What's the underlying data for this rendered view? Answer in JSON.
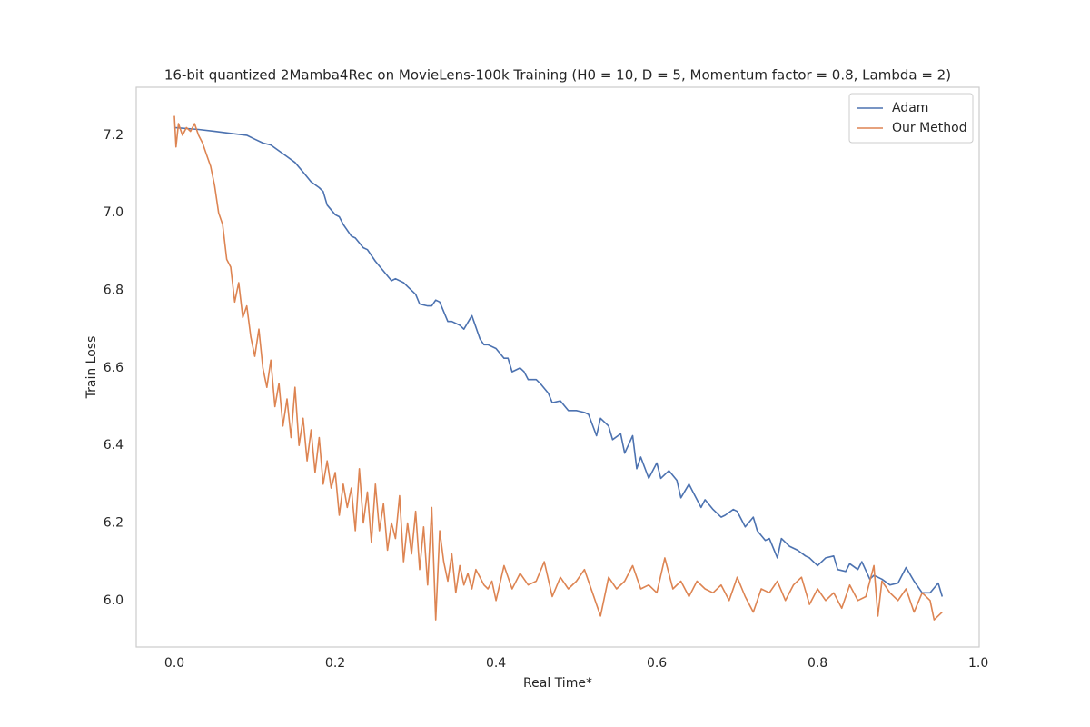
{
  "chart_data": {
    "type": "line",
    "title": "16-bit quantized 2Mamba4Rec on MovieLens-100k Training (H0 = 10, D = 5, Momentum factor = 0.8, Lambda = 2)",
    "xlabel": "Real Time*",
    "ylabel": "Train Loss",
    "xlim": [
      -0.0475,
      1.001
    ],
    "ylim": [
      5.88,
      7.324
    ],
    "xticks": [
      {
        "value": 0,
        "label": "0.0"
      },
      0.2,
      0.4,
      0.6,
      0.8,
      {
        "value": 1,
        "label": "1.0"
      }
    ],
    "yticks": [
      {
        "value": 6,
        "label": "6.0"
      },
      6.2,
      6.4,
      6.6,
      6.8,
      {
        "value": 7,
        "label": "7.0"
      },
      7.2
    ],
    "grid": true,
    "legend": "upper right",
    "series": [
      {
        "name": "Adam",
        "color": "#4c72b0",
        "x": [
          0,
          0.03,
          0.05,
          0.07,
          0.09,
          0.1,
          0.11,
          0.12,
          0.13,
          0.14,
          0.15,
          0.16,
          0.17,
          0.18,
          0.185,
          0.19,
          0.2,
          0.205,
          0.21,
          0.22,
          0.225,
          0.235,
          0.24,
          0.25,
          0.26,
          0.27,
          0.275,
          0.285,
          0.29,
          0.3,
          0.305,
          0.315,
          0.32,
          0.325,
          0.33,
          0.34,
          0.345,
          0.355,
          0.36,
          0.37,
          0.38,
          0.385,
          0.39,
          0.4,
          0.41,
          0.415,
          0.42,
          0.43,
          0.435,
          0.44,
          0.45,
          0.455,
          0.465,
          0.47,
          0.48,
          0.49,
          0.5,
          0.51,
          0.515,
          0.525,
          0.53,
          0.54,
          0.545,
          0.555,
          0.56,
          0.57,
          0.575,
          0.58,
          0.59,
          0.6,
          0.605,
          0.615,
          0.625,
          0.63,
          0.64,
          0.645,
          0.655,
          0.66,
          0.67,
          0.68,
          0.685,
          0.695,
          0.7,
          0.71,
          0.72,
          0.725,
          0.735,
          0.74,
          0.75,
          0.755,
          0.765,
          0.775,
          0.785,
          0.79,
          0.8,
          0.81,
          0.82,
          0.825,
          0.835,
          0.84,
          0.85,
          0.855,
          0.865,
          0.87,
          0.88,
          0.89,
          0.9,
          0.91,
          0.92,
          0.93,
          0.94,
          0.95,
          0.955
        ],
        "values": [
          7.22,
          7.215,
          7.21,
          7.205,
          7.2,
          7.19,
          7.18,
          7.175,
          7.16,
          7.145,
          7.13,
          7.105,
          7.08,
          7.065,
          7.055,
          7.02,
          6.995,
          6.99,
          6.97,
          6.94,
          6.935,
          6.91,
          6.905,
          6.875,
          6.85,
          6.825,
          6.83,
          6.82,
          6.81,
          6.79,
          6.765,
          6.76,
          6.76,
          6.775,
          6.77,
          6.72,
          6.72,
          6.71,
          6.7,
          6.735,
          6.675,
          6.66,
          6.66,
          6.65,
          6.625,
          6.625,
          6.59,
          6.6,
          6.59,
          6.57,
          6.57,
          6.56,
          6.535,
          6.51,
          6.515,
          6.49,
          6.49,
          6.485,
          6.48,
          6.425,
          6.47,
          6.45,
          6.415,
          6.43,
          6.38,
          6.425,
          6.34,
          6.37,
          6.315,
          6.355,
          6.315,
          6.335,
          6.31,
          6.265,
          6.3,
          6.28,
          6.24,
          6.26,
          6.235,
          6.215,
          6.22,
          6.235,
          6.23,
          6.19,
          6.215,
          6.18,
          6.155,
          6.16,
          6.11,
          6.16,
          6.14,
          6.13,
          6.115,
          6.11,
          6.09,
          6.11,
          6.115,
          6.08,
          6.075,
          6.095,
          6.08,
          6.1,
          6.055,
          6.065,
          6.055,
          6.04,
          6.045,
          6.085,
          6.05,
          6.02,
          6.02,
          6.045,
          6.01
        ]
      },
      {
        "name": "Our Method",
        "color": "#dd8452",
        "x": [
          0,
          0.002,
          0.005,
          0.01,
          0.015,
          0.02,
          0.025,
          0.03,
          0.035,
          0.04,
          0.045,
          0.05,
          0.055,
          0.06,
          0.065,
          0.07,
          0.075,
          0.08,
          0.085,
          0.09,
          0.095,
          0.1,
          0.105,
          0.11,
          0.115,
          0.12,
          0.125,
          0.13,
          0.135,
          0.14,
          0.145,
          0.15,
          0.155,
          0.16,
          0.165,
          0.17,
          0.175,
          0.18,
          0.185,
          0.19,
          0.195,
          0.2,
          0.205,
          0.21,
          0.215,
          0.22,
          0.225,
          0.23,
          0.235,
          0.24,
          0.245,
          0.25,
          0.255,
          0.26,
          0.265,
          0.27,
          0.275,
          0.28,
          0.285,
          0.29,
          0.295,
          0.3,
          0.305,
          0.31,
          0.315,
          0.32,
          0.325,
          0.33,
          0.335,
          0.34,
          0.345,
          0.35,
          0.355,
          0.36,
          0.365,
          0.37,
          0.375,
          0.38,
          0.385,
          0.39,
          0.395,
          0.4,
          0.41,
          0.42,
          0.43,
          0.44,
          0.45,
          0.46,
          0.47,
          0.48,
          0.49,
          0.5,
          0.51,
          0.52,
          0.53,
          0.54,
          0.55,
          0.56,
          0.57,
          0.58,
          0.59,
          0.6,
          0.61,
          0.62,
          0.63,
          0.64,
          0.65,
          0.66,
          0.67,
          0.68,
          0.69,
          0.7,
          0.71,
          0.72,
          0.73,
          0.74,
          0.75,
          0.76,
          0.77,
          0.78,
          0.79,
          0.8,
          0.81,
          0.82,
          0.83,
          0.84,
          0.85,
          0.86,
          0.87,
          0.875,
          0.88,
          0.89,
          0.9,
          0.91,
          0.92,
          0.93,
          0.94,
          0.945,
          0.955
        ],
        "values": [
          7.25,
          7.17,
          7.23,
          7.2,
          7.22,
          7.21,
          7.23,
          7.2,
          7.18,
          7.15,
          7.12,
          7.07,
          7.0,
          6.97,
          6.88,
          6.86,
          6.77,
          6.82,
          6.73,
          6.76,
          6.68,
          6.63,
          6.7,
          6.6,
          6.55,
          6.62,
          6.5,
          6.56,
          6.45,
          6.52,
          6.42,
          6.55,
          6.4,
          6.47,
          6.36,
          6.44,
          6.33,
          6.42,
          6.3,
          6.36,
          6.29,
          6.33,
          6.22,
          6.3,
          6.24,
          6.29,
          6.18,
          6.34,
          6.2,
          6.28,
          6.15,
          6.3,
          6.18,
          6.25,
          6.13,
          6.2,
          6.16,
          6.27,
          6.1,
          6.2,
          6.12,
          6.23,
          6.08,
          6.19,
          6.04,
          6.24,
          5.95,
          6.18,
          6.1,
          6.05,
          6.12,
          6.02,
          6.09,
          6.04,
          6.07,
          6.03,
          6.08,
          6.06,
          6.04,
          6.03,
          6.05,
          6.0,
          6.09,
          6.03,
          6.07,
          6.04,
          6.05,
          6.1,
          6.01,
          6.06,
          6.03,
          6.05,
          6.08,
          6.02,
          5.96,
          6.06,
          6.03,
          6.05,
          6.09,
          6.03,
          6.04,
          6.02,
          6.11,
          6.03,
          6.05,
          6.01,
          6.05,
          6.03,
          6.02,
          6.04,
          6.0,
          6.06,
          6.01,
          5.97,
          6.03,
          6.02,
          6.05,
          6.0,
          6.04,
          6.06,
          5.99,
          6.03,
          6.0,
          6.02,
          5.98,
          6.04,
          6.0,
          6.01,
          6.09,
          5.96,
          6.05,
          6.02,
          6.0,
          6.03,
          5.97,
          6.02,
          6.0,
          5.95,
          5.97
        ]
      }
    ]
  }
}
